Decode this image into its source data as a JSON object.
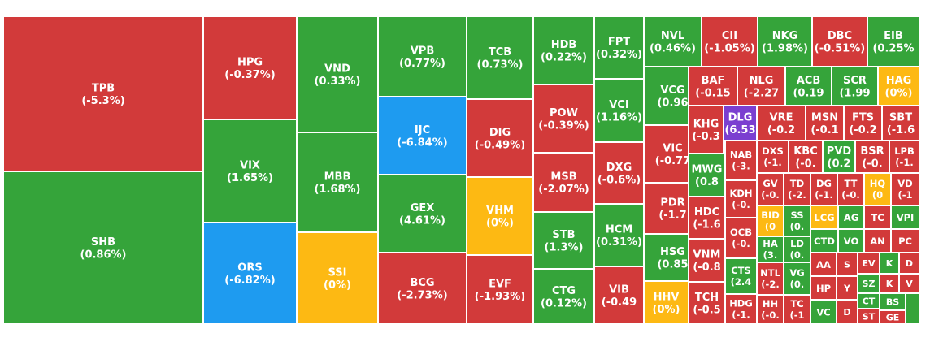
{
  "colors": {
    "up": "#35a43a",
    "down": "#d23a3a",
    "flat": "#fdb913",
    "floor": "#1e9bf0",
    "ceiling": "#7b3fd0",
    "border": "#ffffff"
  },
  "chart_data": {
    "type": "treemap",
    "title": "",
    "tiles": [
      {
        "ticker": "TPB",
        "change": "(-5.3%)",
        "status": "down"
      },
      {
        "ticker": "SHB",
        "change": "(0.86%)",
        "status": "up"
      },
      {
        "ticker": "HPG",
        "change": "(-0.37%)",
        "status": "down"
      },
      {
        "ticker": "VIX",
        "change": "(1.65%)",
        "status": "up"
      },
      {
        "ticker": "ORS",
        "change": "(-6.82%)",
        "status": "floor"
      },
      {
        "ticker": "VND",
        "change": "(0.33%)",
        "status": "up"
      },
      {
        "ticker": "MBB",
        "change": "(1.68%)",
        "status": "up"
      },
      {
        "ticker": "SSI",
        "change": "(0%)",
        "status": "flat"
      },
      {
        "ticker": "VPB",
        "change": "(0.77%)",
        "status": "up"
      },
      {
        "ticker": "IJC",
        "change": "(-6.84%)",
        "status": "floor"
      },
      {
        "ticker": "GEX",
        "change": "(4.61%)",
        "status": "up"
      },
      {
        "ticker": "BCG",
        "change": "(-2.73%)",
        "status": "down"
      },
      {
        "ticker": "TCB",
        "change": "(0.73%)",
        "status": "up"
      },
      {
        "ticker": "DIG",
        "change": "(-0.49%)",
        "status": "down"
      },
      {
        "ticker": "VHM",
        "change": "(0%)",
        "status": "flat"
      },
      {
        "ticker": "EVF",
        "change": "(-1.93%)",
        "status": "down"
      },
      {
        "ticker": "HDB",
        "change": "(0.22%)",
        "status": "up"
      },
      {
        "ticker": "POW",
        "change": "(-0.39%)",
        "status": "down"
      },
      {
        "ticker": "MSB",
        "change": "(-2.07%)",
        "status": "down"
      },
      {
        "ticker": "STB",
        "change": "(1.3%)",
        "status": "up"
      },
      {
        "ticker": "CTG",
        "change": "(0.12%)",
        "status": "up"
      },
      {
        "ticker": "FPT",
        "change": "(0.32%)",
        "status": "up"
      },
      {
        "ticker": "VCI",
        "change": "(1.16%)",
        "status": "up"
      },
      {
        "ticker": "DXG",
        "change": "(-0.6%)",
        "status": "down"
      },
      {
        "ticker": "HCM",
        "change": "(0.31%)",
        "status": "up"
      },
      {
        "ticker": "VIB",
        "change": "(-0.49",
        "status": "down"
      },
      {
        "ticker": "NVL",
        "change": "(0.46%)",
        "status": "up"
      },
      {
        "ticker": "VCG",
        "change": "(0.96",
        "status": "up"
      },
      {
        "ticker": "VIC",
        "change": "(-0.77",
        "status": "down"
      },
      {
        "ticker": "PDR",
        "change": "(-1.7",
        "status": "down"
      },
      {
        "ticker": "HSG",
        "change": "(0.85",
        "status": "up"
      },
      {
        "ticker": "HHV",
        "change": "(0%)",
        "status": "flat"
      },
      {
        "ticker": "CII",
        "change": "(-1.05%)",
        "status": "down"
      },
      {
        "ticker": "NKG",
        "change": "(1.98%)",
        "status": "up"
      },
      {
        "ticker": "DBC",
        "change": "(-0.51%)",
        "status": "down"
      },
      {
        "ticker": "EIB",
        "change": "(0.25%",
        "status": "up"
      },
      {
        "ticker": "BAF",
        "change": "(-0.15",
        "status": "down"
      },
      {
        "ticker": "NLG",
        "change": "(-2.27",
        "status": "down"
      },
      {
        "ticker": "ACB",
        "change": "(0.19",
        "status": "up"
      },
      {
        "ticker": "SCR",
        "change": "(1.99",
        "status": "up"
      },
      {
        "ticker": "HAG",
        "change": "(0%)",
        "status": "flat"
      },
      {
        "ticker": "KHG",
        "change": "(-0.3",
        "status": "down"
      },
      {
        "ticker": "DLG",
        "change": "(6.53",
        "status": "ceiling"
      },
      {
        "ticker": "VRE",
        "change": "(-0.2",
        "status": "down"
      },
      {
        "ticker": "MSN",
        "change": "(-0.1",
        "status": "down"
      },
      {
        "ticker": "FTS",
        "change": "(-0.2",
        "status": "down"
      },
      {
        "ticker": "SBT",
        "change": "(-1.6",
        "status": "down"
      },
      {
        "ticker": "MWG",
        "change": "(0.8",
        "status": "up"
      },
      {
        "ticker": "NAB",
        "change": "(-3.",
        "status": "down"
      },
      {
        "ticker": "DXS",
        "change": "(-1.",
        "status": "down"
      },
      {
        "ticker": "KBC",
        "change": "(-0.",
        "status": "down"
      },
      {
        "ticker": "PVD",
        "change": "(0.2",
        "status": "up"
      },
      {
        "ticker": "BSR",
        "change": "(-0.",
        "status": "down"
      },
      {
        "ticker": "LPB",
        "change": "(-1.",
        "status": "down"
      },
      {
        "ticker": "HDC",
        "change": "(-1.6",
        "status": "down"
      },
      {
        "ticker": "KDH",
        "change": "(-0.",
        "status": "down"
      },
      {
        "ticker": "GV",
        "change": "(-0.",
        "status": "down"
      },
      {
        "ticker": "TD",
        "change": "(-2.",
        "status": "down"
      },
      {
        "ticker": "DG",
        "change": "(-1.",
        "status": "down"
      },
      {
        "ticker": "TT",
        "change": "(-0.",
        "status": "down"
      },
      {
        "ticker": "HQ",
        "change": "(0",
        "status": "flat"
      },
      {
        "ticker": "VD",
        "change": "(-1",
        "status": "down"
      },
      {
        "ticker": "VNM",
        "change": "(-0.8",
        "status": "down"
      },
      {
        "ticker": "OCB",
        "change": "(-0.",
        "status": "down"
      },
      {
        "ticker": "BID",
        "change": "(0",
        "status": "flat"
      },
      {
        "ticker": "SS",
        "change": "(0.",
        "status": "up"
      },
      {
        "ticker": "LCG",
        "change": "",
        "status": "flat"
      },
      {
        "ticker": "AG",
        "change": "",
        "status": "up"
      },
      {
        "ticker": "TC",
        "change": "",
        "status": "down"
      },
      {
        "ticker": "VPI",
        "change": "",
        "status": "up"
      },
      {
        "ticker": "CTS",
        "change": "(2.4",
        "status": "up"
      },
      {
        "ticker": "HA",
        "change": "(3.",
        "status": "up"
      },
      {
        "ticker": "LD",
        "change": "(0.",
        "status": "up"
      },
      {
        "ticker": "CTD",
        "change": "",
        "status": "up"
      },
      {
        "ticker": "VO",
        "change": "",
        "status": "up"
      },
      {
        "ticker": "AN",
        "change": "",
        "status": "down"
      },
      {
        "ticker": "PC",
        "change": "",
        "status": "down"
      },
      {
        "ticker": "TCH",
        "change": "(-0.5",
        "status": "down"
      },
      {
        "ticker": "NTL",
        "change": "(-2.",
        "status": "down"
      },
      {
        "ticker": "VG",
        "change": "(0.",
        "status": "up"
      },
      {
        "ticker": "AA",
        "change": "",
        "status": "down"
      },
      {
        "ticker": "S",
        "change": "",
        "status": "down"
      },
      {
        "ticker": "EV",
        "change": "",
        "status": "down"
      },
      {
        "ticker": "K",
        "change": "",
        "status": "up"
      },
      {
        "ticker": "D",
        "change": "",
        "status": "down"
      },
      {
        "ticker": "HDG",
        "change": "(-1.",
        "status": "down"
      },
      {
        "ticker": "HH",
        "change": "(-0.",
        "status": "down"
      },
      {
        "ticker": "TC",
        "change": "(-1",
        "status": "down"
      },
      {
        "ticker": "HP",
        "change": "",
        "status": "down"
      },
      {
        "ticker": "Y",
        "change": "",
        "status": "down"
      },
      {
        "ticker": "SZ",
        "change": "",
        "status": "up"
      },
      {
        "ticker": "K",
        "change": "",
        "status": "down"
      },
      {
        "ticker": "V",
        "change": "",
        "status": "down"
      },
      {
        "ticker": "VC",
        "change": "",
        "status": "up"
      },
      {
        "ticker": "D",
        "change": "",
        "status": "down"
      },
      {
        "ticker": "CT",
        "change": "",
        "status": "up"
      },
      {
        "ticker": "ST",
        "change": "",
        "status": "down"
      },
      {
        "ticker": "BS",
        "change": "",
        "status": "up"
      },
      {
        "ticker": "GE",
        "change": "",
        "status": "down"
      },
      {
        "ticker": "",
        "change": "",
        "status": "up"
      }
    ]
  }
}
